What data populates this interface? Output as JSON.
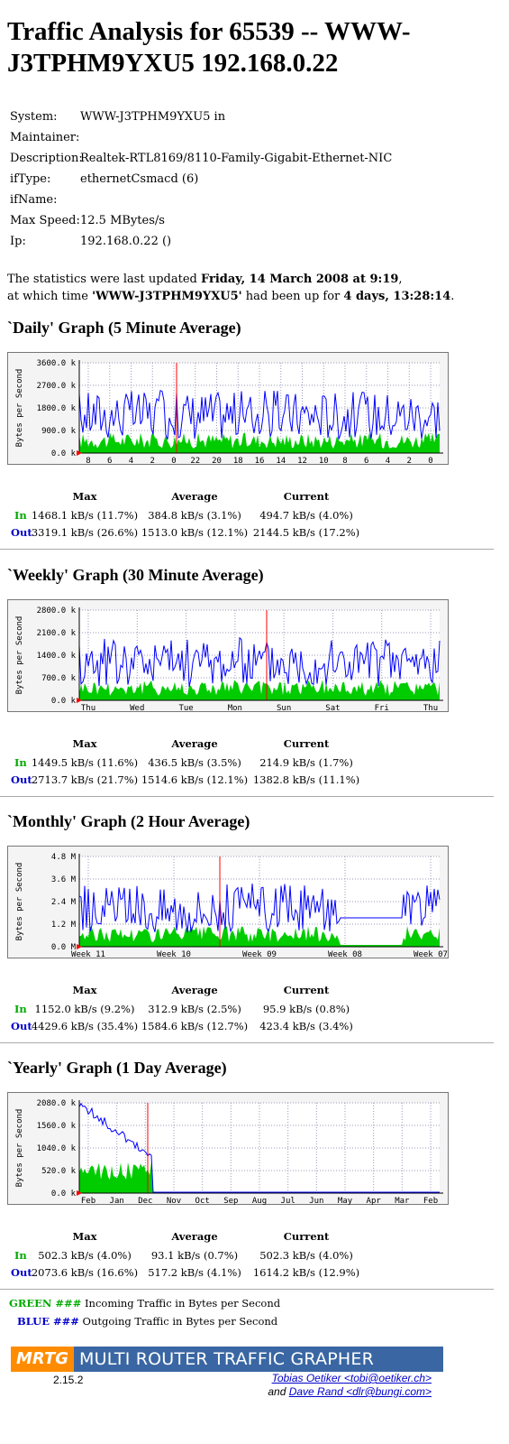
{
  "page": {
    "title": "Traffic Analysis for 65539 -- WWW-J3TPHM9YXU5 192.168.0.22"
  },
  "info": [
    {
      "label": "System:",
      "value": "WWW-J3TPHM9YXU5 in"
    },
    {
      "label": "Maintainer:",
      "value": ""
    },
    {
      "label": "Description:",
      "value": "Realtek-RTL8169/8110-Family-Gigabit-Ethernet-NIC"
    },
    {
      "label": "ifType:",
      "value": "ethernetCsmacd (6)"
    },
    {
      "label": "ifName:",
      "value": ""
    },
    {
      "label": "Max Speed:",
      "value": "12.5 MBytes/s"
    },
    {
      "label": "Ip:",
      "value": "192.168.0.22 ()"
    }
  ],
  "stats_line": {
    "p1": "The statistics were last updated ",
    "updated": "Friday, 14 March 2008 at 9:19",
    "p2": ",",
    "p3": "at which time ",
    "host": "'WWW-J3TPHM9YXU5'",
    "p4": " had been up for ",
    "uptime": "4 days, 13:28:14",
    "p5": "."
  },
  "table_headers": {
    "max": "Max",
    "average": "Average",
    "current": "Current",
    "in": "In",
    "out": "Out"
  },
  "axis_label": "Bytes per Second",
  "graphs": [
    {
      "title": "`Daily' Graph (5 Minute Average)",
      "yticks": [
        "3600.0 k",
        "2700.0 k",
        "1800.0 k",
        "900.0 k",
        "0.0 k"
      ],
      "xticks": [
        "8",
        "6",
        "4",
        "2",
        "0",
        "22",
        "20",
        "18",
        "16",
        "14",
        "12",
        "10",
        "8",
        "6",
        "4",
        "2",
        "0"
      ],
      "in": {
        "max": "1468.1 kB/s (11.7%)",
        "avg": "384.8 kB/s (3.1%)",
        "cur": "494.7 kB/s (4.0%)"
      },
      "out": {
        "max": "3319.1 kB/s (26.6%)",
        "avg": "1513.0 kB/s (12.1%)",
        "cur": "2144.5 kB/s (17.2%)"
      }
    },
    {
      "title": "`Weekly' Graph (30 Minute Average)",
      "yticks": [
        "2800.0 k",
        "2100.0 k",
        "1400.0 k",
        "700.0 k",
        "0.0 k"
      ],
      "xticks": [
        "Thu",
        "Wed",
        "Tue",
        "Mon",
        "Sun",
        "Sat",
        "Fri",
        "Thu"
      ],
      "in": {
        "max": "1449.5 kB/s (11.6%)",
        "avg": "436.5 kB/s (3.5%)",
        "cur": "214.9 kB/s (1.7%)"
      },
      "out": {
        "max": "2713.7 kB/s (21.7%)",
        "avg": "1514.6 kB/s (12.1%)",
        "cur": "1382.8 kB/s (11.1%)"
      }
    },
    {
      "title": "`Monthly' Graph (2 Hour Average)",
      "yticks": [
        "4.8 M",
        "3.6 M",
        "2.4 M",
        "1.2 M",
        "0.0 M"
      ],
      "xticks": [
        "Week 11",
        "Week 10",
        "Week 09",
        "Week 08",
        "Week 07"
      ],
      "in": {
        "max": "1152.0 kB/s (9.2%)",
        "avg": "312.9 kB/s (2.5%)",
        "cur": "95.9 kB/s (0.8%)"
      },
      "out": {
        "max": "4429.6 kB/s (35.4%)",
        "avg": "1584.6 kB/s (12.7%)",
        "cur": "423.4 kB/s (3.4%)"
      }
    },
    {
      "title": "`Yearly' Graph (1 Day Average)",
      "yticks": [
        "2080.0 k",
        "1560.0 k",
        "1040.0 k",
        "520.0 k",
        "0.0 k"
      ],
      "xticks": [
        "Feb",
        "Jan",
        "Dec",
        "Nov",
        "Oct",
        "Sep",
        "Aug",
        "Jul",
        "Jun",
        "May",
        "Apr",
        "Mar",
        "Feb"
      ],
      "in": {
        "max": "502.3 kB/s (4.0%)",
        "avg": "93.1 kB/s (0.7%)",
        "cur": "502.3 kB/s (4.0%)"
      },
      "out": {
        "max": "2073.6 kB/s (16.6%)",
        "avg": "517.2 kB/s (4.1%)",
        "cur": "1614.2 kB/s (12.9%)"
      }
    }
  ],
  "legend": {
    "green_word": "GREEN ###",
    "green_text": " Incoming Traffic in Bytes per Second",
    "blue_word": "BLUE ###",
    "blue_text": " Outgoing Traffic in Bytes per Second"
  },
  "footer": {
    "logo_short": "MRTG",
    "logo_long": "MULTI ROUTER TRAFFIC GRAPHER",
    "version": "2.15.2",
    "author1_name": "Tobias Oetiker",
    "author1_email": "<tobi@oetiker.ch>",
    "and": "and ",
    "author2_name": "Dave Rand",
    "author2_email": "<dlr@bungi.com>"
  },
  "colors": {
    "in": "#00cc00",
    "out": "#0000ff",
    "marker": "#ff0000",
    "grid": "#9999bb"
  }
}
